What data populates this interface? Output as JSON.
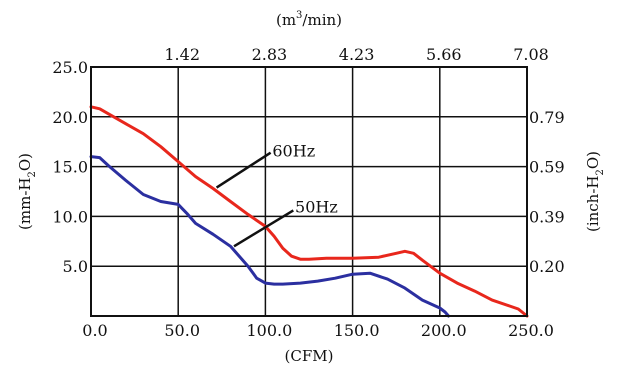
{
  "chart_data": {
    "type": "line",
    "xlabel": "(CFM)",
    "xlabel_top": "(m³/min)",
    "xlabel_top_main": "(m",
    "xlabel_top_sup": "3",
    "xlabel_top_rest": "/min)",
    "ylabel_left": "(mm-H₂O)",
    "ylabel_left_main": "(mm-H",
    "ylabel_left_sub": "2",
    "ylabel_left_rest": "O)",
    "ylabel_right": "(inch-H₂O)",
    "ylabel_right_main": "(inch-H",
    "ylabel_right_sub": "2",
    "ylabel_right_rest": "O)",
    "xlim": [
      0,
      250
    ],
    "ylim": [
      0,
      25
    ],
    "grid": true,
    "x_ticks": [
      {
        "value": 0,
        "label": "0.0"
      },
      {
        "value": 50,
        "label": "50.0"
      },
      {
        "value": 100,
        "label": "100.0"
      },
      {
        "value": 150,
        "label": "150.0"
      },
      {
        "value": 200,
        "label": "200.0"
      },
      {
        "value": 250,
        "label": "250.0"
      }
    ],
    "top_ticks": [
      {
        "value": 50,
        "label": "1.42"
      },
      {
        "value": 100,
        "label": "2.83"
      },
      {
        "value": 150,
        "label": "4.23"
      },
      {
        "value": 200,
        "label": "5.66"
      },
      {
        "value": 250,
        "label": "7.08"
      }
    ],
    "y_ticks": [
      {
        "value": 5,
        "label": "5.0"
      },
      {
        "value": 10,
        "label": "10.0"
      },
      {
        "value": 15,
        "label": "15.0"
      },
      {
        "value": 20,
        "label": "20.0"
      },
      {
        "value": 25,
        "label": "25.0"
      }
    ],
    "right_ticks": [
      {
        "value": 5,
        "label": "0.20"
      },
      {
        "value": 10,
        "label": "0.39"
      },
      {
        "value": 15,
        "label": "0.59"
      },
      {
        "value": 20,
        "label": "0.79"
      }
    ],
    "series": [
      {
        "name": "60Hz",
        "color": "#e8271c",
        "x": [
          0,
          5,
          10,
          20,
          30,
          40,
          50,
          60,
          70,
          80,
          90,
          100,
          105,
          110,
          115,
          120,
          125,
          135,
          150,
          165,
          175,
          180,
          185,
          190,
          200,
          210,
          220,
          230,
          240,
          245,
          250
        ],
        "y": [
          21.0,
          20.8,
          20.3,
          19.3,
          18.3,
          17.0,
          15.5,
          14.0,
          12.8,
          11.5,
          10.2,
          9.0,
          8.0,
          6.8,
          6.0,
          5.7,
          5.7,
          5.8,
          5.8,
          5.9,
          6.3,
          6.5,
          6.3,
          5.6,
          4.3,
          3.3,
          2.5,
          1.6,
          1.0,
          0.7,
          0.0
        ]
      },
      {
        "name": "50Hz",
        "color": "#2b2fa0",
        "x": [
          0,
          5,
          10,
          20,
          30,
          40,
          50,
          55,
          60,
          70,
          80,
          90,
          95,
          100,
          105,
          110,
          120,
          130,
          140,
          150,
          160,
          170,
          180,
          190,
          200,
          203,
          205
        ],
        "y": [
          16.0,
          15.9,
          15.1,
          13.6,
          12.2,
          11.5,
          11.2,
          10.3,
          9.3,
          8.2,
          7.0,
          5.0,
          3.8,
          3.3,
          3.2,
          3.2,
          3.3,
          3.5,
          3.8,
          4.2,
          4.3,
          3.7,
          2.8,
          1.6,
          0.8,
          0.4,
          0.0
        ]
      }
    ],
    "annotations": [
      {
        "text": "60Hz",
        "series": "60Hz",
        "line_from": [
          72,
          12.9
        ],
        "line_to": [
          103,
          16.4
        ],
        "text_at": [
          104,
          16.4
        ]
      },
      {
        "text": "50Hz",
        "series": "50Hz",
        "line_from": [
          82,
          7.0
        ],
        "line_to": [
          116,
          10.6
        ],
        "text_at": [
          117,
          10.8
        ]
      }
    ]
  }
}
